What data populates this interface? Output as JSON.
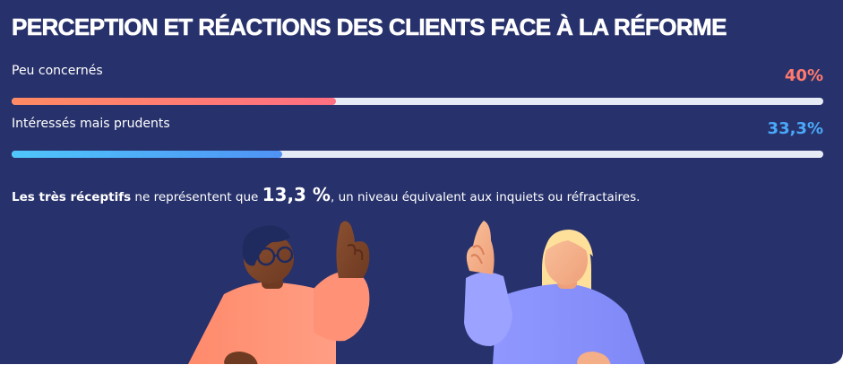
{
  "title": "PERCEPTION ET RÉACTIONS DES CLIENTS FACE À LA RÉFORME",
  "colors": {
    "background": "#27316b",
    "track": "#e6ecf5",
    "coral_start": "#ff8a63",
    "coral_end": "#ff6f82",
    "blue_start": "#4fc6fb",
    "blue_end": "#4f93f5"
  },
  "rows": [
    {
      "label": "Peu concernés",
      "value_text": "40%",
      "value": 40
    },
    {
      "label": "Intéressés mais prudents",
      "value_text": "33,3%",
      "value": 33.3
    }
  ],
  "summary": {
    "bold_lead": "Les très réceptifs",
    "text_before": " ne représentent que ",
    "highlight": "13,3 %",
    "text_after": ", un niveau équivalent aux inquiets ou réfractaires."
  },
  "illustrations": [
    {
      "name": "person-pointing-left",
      "description": "Person with glasses in coral sweater raising index finger"
    },
    {
      "name": "person-pointing-right",
      "description": "Blonde person in lavender sweater raising index finger"
    }
  ],
  "chart_data": {
    "type": "bar",
    "orientation": "horizontal",
    "title": "PERCEPTION ET RÉACTIONS DES CLIENTS FACE À LA RÉFORME",
    "categories": [
      "Peu concernés",
      "Intéressés mais prudents"
    ],
    "values": [
      40,
      33.3
    ],
    "value_labels": [
      "40%",
      "33,3%"
    ],
    "xlim": [
      0,
      100
    ],
    "unit": "%",
    "annotations": [
      "Les très réceptifs ne représentent que 13,3 %, un niveau équivalent aux inquiets ou réfractaires."
    ],
    "grid": false,
    "legend": "none"
  }
}
